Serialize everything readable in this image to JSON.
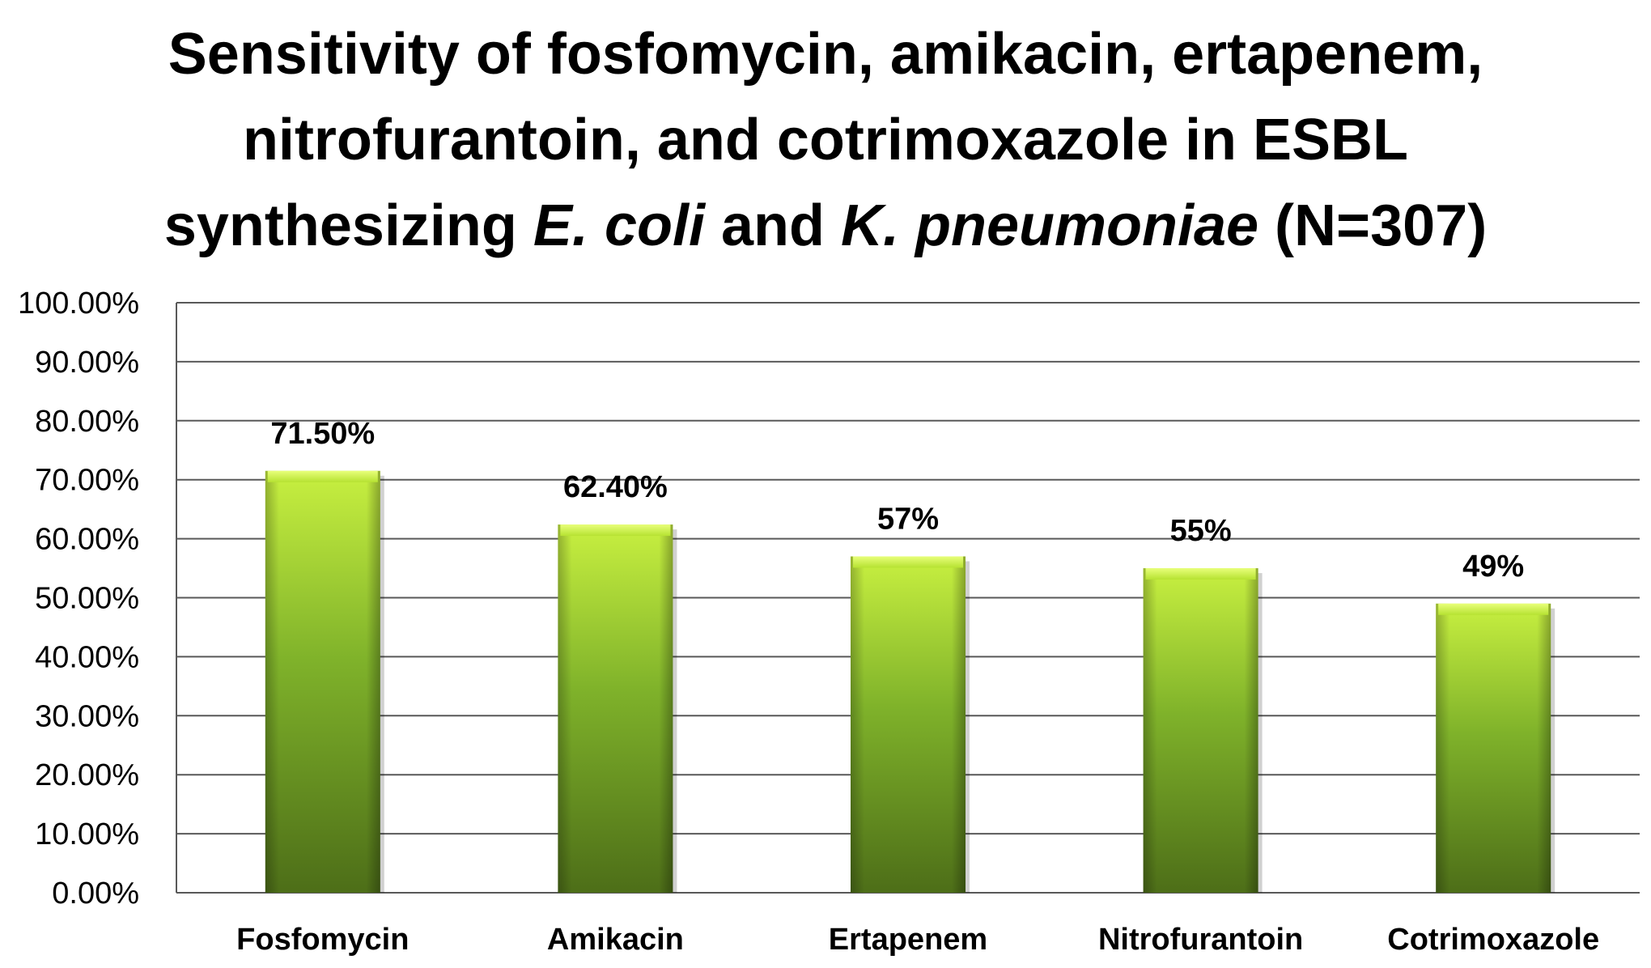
{
  "title": {
    "line1": "Sensitivity of fosfomycin, amikacin, ertapenem,",
    "line2": "nitrofurantoin, and cotrimoxazole in ESBL",
    "line3_a": "synthesizing ",
    "line3_b": "E. coli",
    "line3_c": " and ",
    "line3_d": "K. pneumoniae",
    "line3_e": " (N=307)"
  },
  "chart_data": {
    "type": "bar",
    "title": "Sensitivity of fosfomycin, amikacin, ertapenem, nitrofurantoin, and cotrimoxazole in ESBL synthesizing E. coli and K. pneumoniae (N=307)",
    "categories": [
      "Fosfomycin",
      "Amikacin",
      "Ertapenem",
      "Nitrofurantoin",
      "Cotrimoxazole"
    ],
    "values": [
      71.5,
      62.4,
      57,
      55,
      49
    ],
    "data_labels": [
      "71.50%",
      "62.40%",
      "57%",
      "55%",
      "49%"
    ],
    "y_ticks": [
      "0.00%",
      "10.00%",
      "20.00%",
      "30.00%",
      "40.00%",
      "50.00%",
      "60.00%",
      "70.00%",
      "80.00%",
      "90.00%",
      "100.00%"
    ],
    "xlabel": "",
    "ylabel": "",
    "ylim": [
      0,
      100
    ],
    "grid": true,
    "legend": "none",
    "colors": {
      "bar_top": "#c8f040",
      "bar_mid": "#7fb22a",
      "bar_bottom": "#4d6e18",
      "gridline": "#595959",
      "axis": "#595959"
    }
  }
}
